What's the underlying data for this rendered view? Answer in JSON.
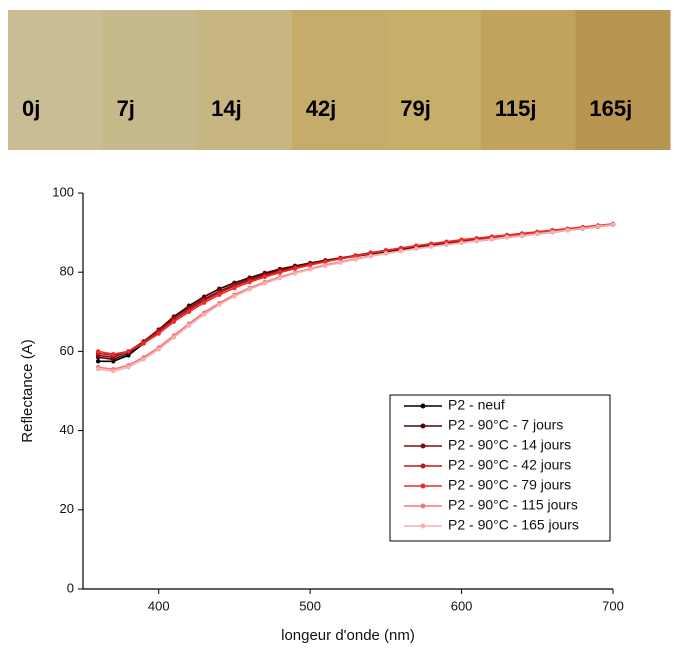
{
  "swatches": [
    {
      "label": "0j",
      "color": "#c9bd95"
    },
    {
      "label": "7j",
      "color": "#c6b98c"
    },
    {
      "label": "14j",
      "color": "#c7b681"
    },
    {
      "label": "42j",
      "color": "#c5ac6b"
    },
    {
      "label": "79j",
      "color": "#c7ae69"
    },
    {
      "label": "115j",
      "color": "#c2a35b"
    },
    {
      "label": "165j",
      "color": "#b89550"
    }
  ],
  "chart_data": {
    "type": "line",
    "x_label": "longeur d'onde (nm)",
    "y_label": "Reflectance (A)",
    "x": [
      360,
      370,
      380,
      390,
      400,
      410,
      420,
      430,
      440,
      450,
      460,
      470,
      480,
      490,
      500,
      510,
      520,
      530,
      540,
      550,
      560,
      570,
      580,
      590,
      600,
      610,
      620,
      630,
      640,
      650,
      660,
      670,
      680,
      690,
      700
    ],
    "xlim": [
      350,
      700
    ],
    "xticks": [
      400,
      500,
      600,
      700
    ],
    "ylim": [
      0,
      100
    ],
    "yticks": [
      0,
      20,
      40,
      60,
      80,
      100
    ],
    "legend": "lower right",
    "markers": true,
    "series": [
      {
        "name": "P2 - neuf",
        "color": "#000000",
        "values": [
          57.5,
          57.5,
          59,
          62,
          65,
          68.5,
          71.5,
          73.8,
          75.8,
          77.3,
          78.6,
          79.7,
          80.6,
          81.4,
          82.1,
          82.8,
          83.4,
          84,
          84.6,
          85.2,
          85.7,
          86.2,
          86.6,
          87.1,
          87.5,
          87.9,
          88.3,
          88.8,
          89.2,
          89.7,
          90.1,
          90.6,
          91,
          91.5,
          92
        ]
      },
      {
        "name": "P2 - 90°C - 7 jours",
        "color": "#4a0505",
        "values": [
          58.5,
          58,
          59.5,
          62.5,
          65.5,
          68.8,
          71.5,
          73.8,
          75.8,
          77.3,
          78.6,
          79.8,
          80.8,
          81.6,
          82.3,
          83,
          83.6,
          84.2,
          84.9,
          85.5,
          86,
          86.5,
          87,
          87.4,
          87.8,
          88.2,
          88.6,
          89,
          89.4,
          89.8,
          90.2,
          90.6,
          91.1,
          91.5,
          92
        ]
      },
      {
        "name": "P2 - 90°C - 14 jours",
        "color": "#7d0d12",
        "values": [
          59,
          58.5,
          60,
          62.5,
          65.5,
          68.5,
          71,
          73.2,
          75.2,
          76.8,
          78.2,
          79.4,
          80.4,
          81.3,
          82.1,
          82.8,
          83.5,
          84.2,
          84.9,
          85.5,
          86.1,
          86.6,
          87.1,
          87.6,
          88,
          88.4,
          88.8,
          89.2,
          89.6,
          90,
          90.4,
          90.8,
          91.2,
          91.6,
          92
        ]
      },
      {
        "name": "P2 - 90°C - 42 jours",
        "color": "#c4121c",
        "values": [
          59.5,
          59,
          60,
          62.3,
          65,
          68,
          70.5,
          72.8,
          74.8,
          76.5,
          77.9,
          79.1,
          80.2,
          81.1,
          81.9,
          82.7,
          83.4,
          84.1,
          84.8,
          85.4,
          86,
          86.6,
          87.1,
          87.6,
          88,
          88.5,
          88.9,
          89.3,
          89.7,
          90.1,
          90.5,
          90.9,
          91.3,
          91.7,
          92.1
        ]
      },
      {
        "name": "P2 - 90°C - 79 jours",
        "color": "#ee2a2a",
        "values": [
          60,
          59.3,
          60,
          62,
          64.5,
          67.5,
          70,
          72.3,
          74.3,
          76,
          77.5,
          78.8,
          79.9,
          80.9,
          81.8,
          82.6,
          83.4,
          84.1,
          84.8,
          85.5,
          86.1,
          86.7,
          87.2,
          87.7,
          88.2,
          88.6,
          89,
          89.4,
          89.8,
          90.2,
          90.6,
          91,
          91.4,
          91.8,
          92.2
        ]
      },
      {
        "name": "P2 - 90°C - 115 jours",
        "color": "#f27878",
        "values": [
          56,
          55.5,
          56.5,
          58.5,
          61,
          64,
          67,
          69.8,
          72.2,
          74.3,
          76,
          77.5,
          78.8,
          79.9,
          80.9,
          81.8,
          82.6,
          83.4,
          84.1,
          84.8,
          85.4,
          86,
          86.5,
          87,
          87.5,
          88,
          88.4,
          88.9,
          89.3,
          89.7,
          90.2,
          90.6,
          91.1,
          91.6,
          92
        ]
      },
      {
        "name": "P2 - 90°C - 165 jours",
        "color": "#f7b0b0",
        "values": [
          55.5,
          55,
          56,
          58,
          60.5,
          63.5,
          66.5,
          69.3,
          71.8,
          73.9,
          75.7,
          77.2,
          78.5,
          79.7,
          80.7,
          81.6,
          82.4,
          83.2,
          84,
          84.7,
          85.3,
          85.9,
          86.4,
          86.9,
          87.4,
          87.9,
          88.3,
          88.8,
          89.2,
          89.7,
          90.1,
          90.6,
          91,
          91.5,
          92
        ]
      }
    ]
  }
}
